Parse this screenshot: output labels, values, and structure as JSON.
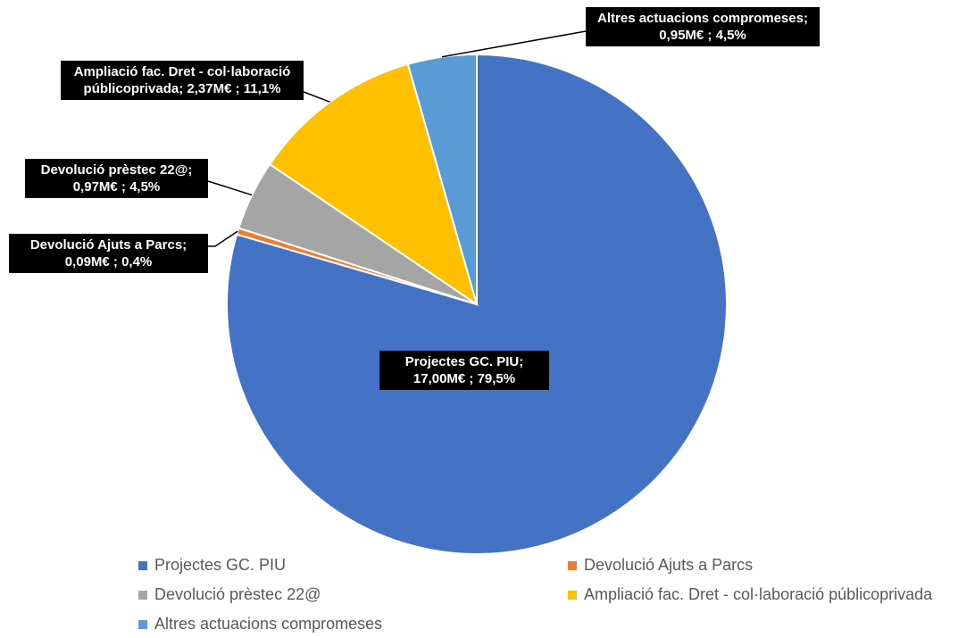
{
  "chart_data": {
    "type": "pie",
    "title": "",
    "categories": [
      "Projectes GC. PIU",
      "Devolució Ajuts a Parcs",
      "Devolució prèstec 22@",
      "Ampliació fac. Dret - col·laboració públicoprivada",
      "Altres actuacions compromeses"
    ],
    "values": [
      17.0,
      0.09,
      0.97,
      2.37,
      0.95
    ],
    "percentages": [
      79.5,
      0.4,
      4.5,
      11.1,
      4.5
    ],
    "unit": "M€",
    "colors": [
      "#4472C4",
      "#ED7D31",
      "#A5A5A5",
      "#FFC000",
      "#5B9BD5"
    ],
    "data_labels": [
      [
        "Projectes GC. PIU;",
        "17,00M€ ; 79,5%"
      ],
      [
        "Devolució Ajuts a Parcs;",
        "0,09M€ ; 0,4%"
      ],
      [
        "Devolució prèstec 22@;",
        "0,97M€ ; 4,5%"
      ],
      [
        "Ampliació fac. Dret - col·laboració",
        "públicoprivada;  2,37M€ ; 11,1%"
      ],
      [
        "Altres actuacions compromeses;",
        "0,95M€ ; 4,5%"
      ]
    ],
    "legend_position": "bottom"
  }
}
